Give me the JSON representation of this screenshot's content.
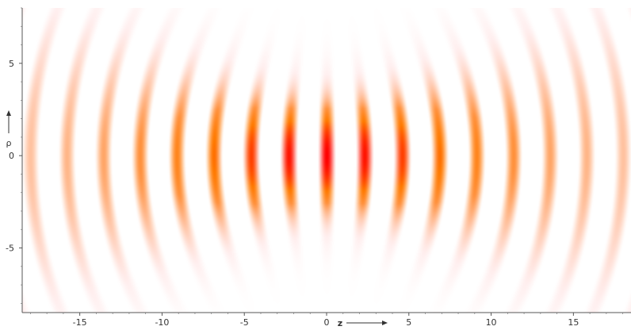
{
  "chart_data": {
    "type": "heatmap",
    "title": "",
    "description_of_function": "",
    "x": {
      "label": "z",
      "range": [
        -18.5,
        18.5
      ],
      "ticks": [
        -15,
        -10,
        -5,
        0,
        5,
        10,
        15
      ],
      "tick_labels": [
        "-15",
        "-10",
        "-5",
        "0",
        "5",
        "10",
        "15"
      ]
    },
    "y": {
      "label": "ρ",
      "range": [
        -8.5,
        8
      ],
      "ticks": [
        -5,
        0,
        5
      ],
      "tick_labels": [
        "-5",
        "0",
        "5"
      ]
    },
    "field": {
      "wavelength": 2.2,
      "waist": 3.2,
      "rayleigh_range": 7.2,
      "colors": {
        "peak": "#ff0000",
        "mid": "#ff7a00",
        "edge": "#ffc7c7"
      }
    },
    "grid": false,
    "legend": "none"
  }
}
